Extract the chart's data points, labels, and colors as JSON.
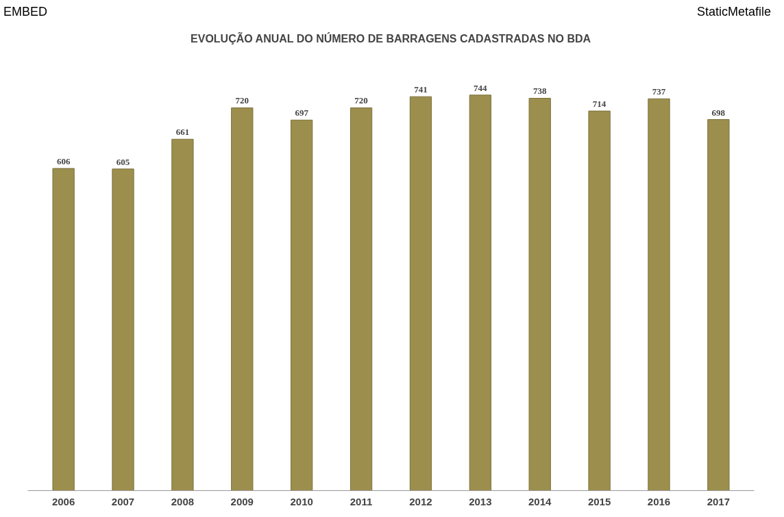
{
  "chart_data": {
    "type": "bar",
    "title": "EVOLUÇÃO ANUAL DO NÚMERO DE BARRAGENS CADASTRADAS NO BDA",
    "categories": [
      "2006",
      "2007",
      "2008",
      "2009",
      "2010",
      "2011",
      "2012",
      "2013",
      "2014",
      "2015",
      "2016",
      "2017"
    ],
    "values": [
      606,
      605,
      661,
      720,
      697,
      720,
      741,
      744,
      738,
      714,
      737,
      698
    ],
    "color": "#9c8f4e",
    "data_labels": true,
    "grid": false,
    "annotations": [
      "EMBED",
      "StaticMetafile"
    ]
  }
}
